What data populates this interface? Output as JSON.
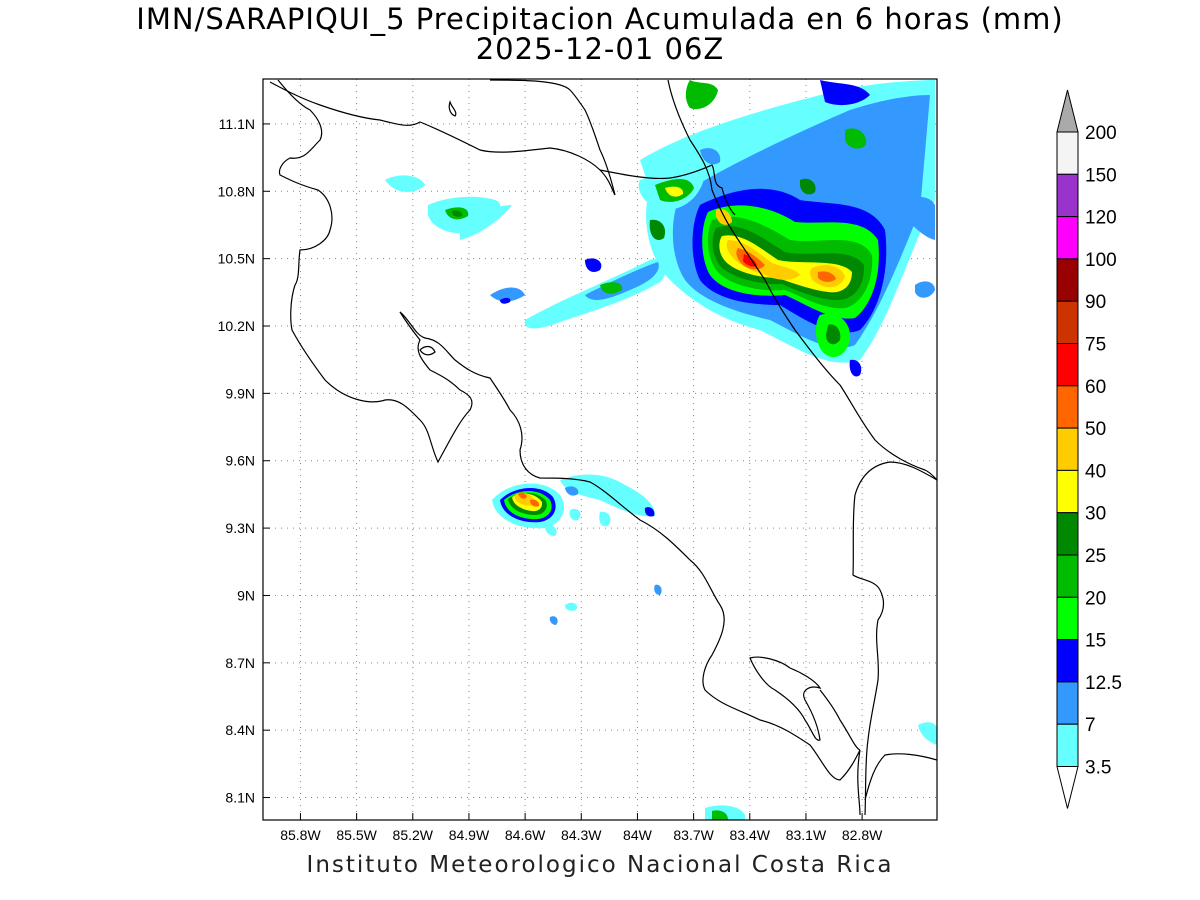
{
  "title": {
    "line1": "IMN/SARAPIQUI_5 Precipitacion Acumulada en 6 horas (mm)",
    "line2": "2025-12-01 06Z"
  },
  "footer": "Instituto Meteorologico Nacional Costa Rica",
  "map": {
    "lon_range": [
      -86.0,
      -82.4
    ],
    "lat_range": [
      8.0,
      11.3
    ],
    "lon_labels": [
      "85.8W",
      "85.5W",
      "85.2W",
      "84.9W",
      "84.6W",
      "84.3W",
      "84W",
      "83.7W",
      "83.4W",
      "83.1W",
      "82.8W"
    ],
    "lat_labels": [
      "11.1N",
      "10.8N",
      "10.5N",
      "10.2N",
      "9.9N",
      "9.6N",
      "9.3N",
      "9N",
      "8.7N",
      "8.4N",
      "8.1N"
    ],
    "grid": true
  },
  "colorbar": {
    "levels": [
      "200",
      "150",
      "120",
      "100",
      "90",
      "75",
      "60",
      "50",
      "40",
      "30",
      "25",
      "20",
      "15",
      "12.5",
      "7",
      "3.5"
    ],
    "colors": [
      "#f4f4f4",
      "#9933cc",
      "#ff00ff",
      "#990000",
      "#cc3300",
      "#ff0000",
      "#ff6600",
      "#ffcc00",
      "#ffff00",
      "#008800",
      "#00bb00",
      "#00ff00",
      "#0000ff",
      "#3399ff",
      "#66ffff"
    ],
    "arrow_top_color": "#aaaaaa",
    "arrow_bottom_color": "#ffffff"
  },
  "precip_cells": [
    {
      "lon": -83.45,
      "lat": 10.52,
      "peak": "50"
    },
    {
      "lon": -83.55,
      "lat": 10.68,
      "peak": "40"
    },
    {
      "lon": -82.95,
      "lat": 10.42,
      "peak": "40"
    },
    {
      "lon": -84.55,
      "lat": 9.44,
      "peak": "50"
    },
    {
      "lon": -83.7,
      "lat": 10.82,
      "peak": "25"
    },
    {
      "lon": -84.82,
      "lat": 10.72,
      "peak": "25"
    }
  ]
}
